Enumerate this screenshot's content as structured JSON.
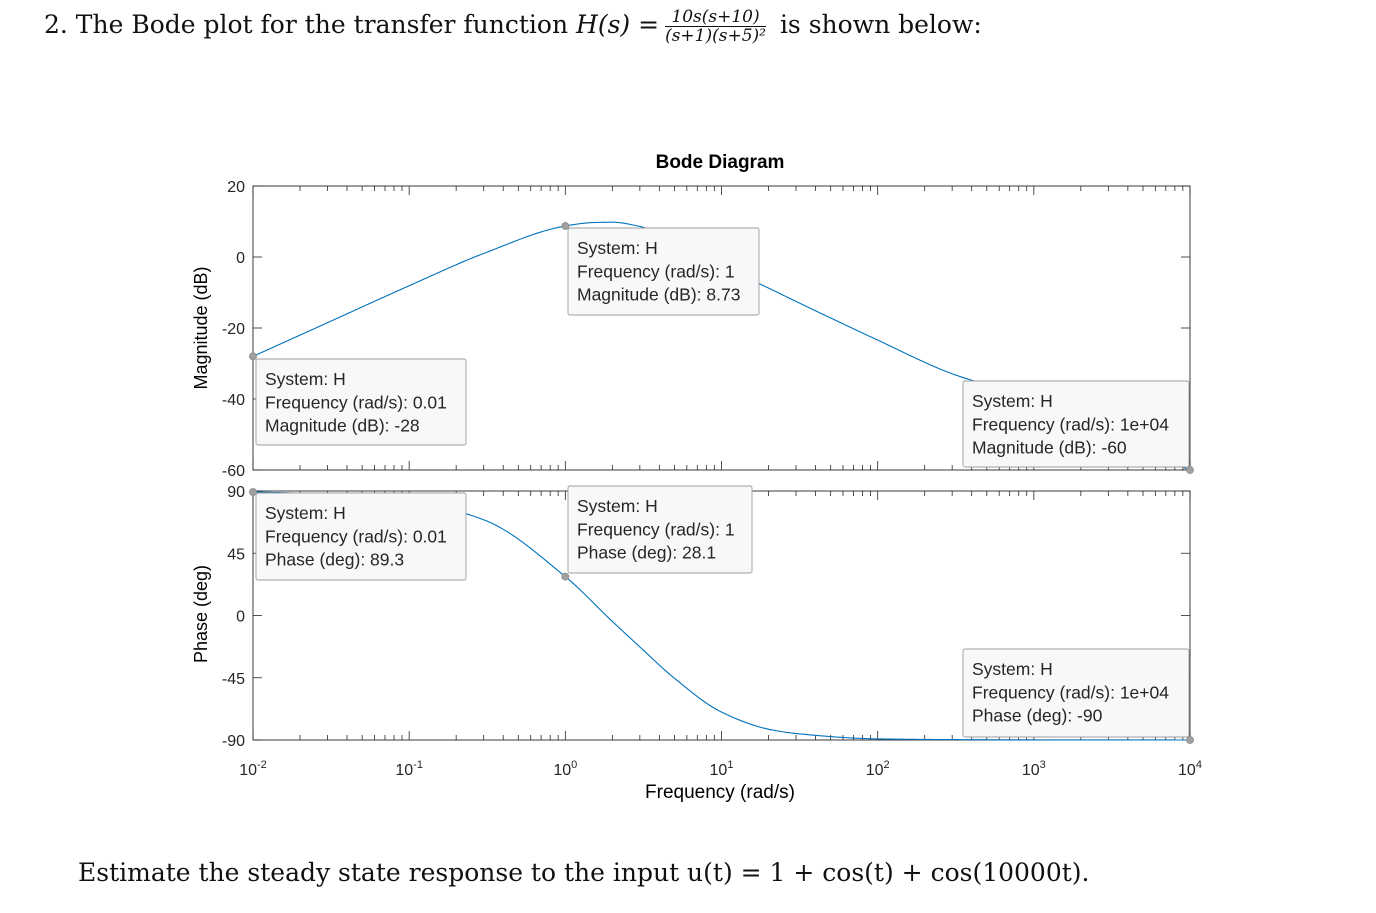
{
  "problem": {
    "prefix": "2. The Bode plot for the transfer function",
    "h_of_s": "H(s) =",
    "numerator": "10s(s+10)",
    "denominator": "(s+1)(s+5)²",
    "suffix": "is shown below:"
  },
  "question": {
    "text": "Estimate the steady state response to the input u(t) = 1 + cos(t) + cos(10000t)."
  },
  "chart_data": {
    "type": "line",
    "title": "Bode Diagram",
    "xlabel": "Frequency  (rad/s)",
    "x_scale": "log",
    "xlim": [
      0.01,
      10000
    ],
    "x_ticks": [
      {
        "base": "10",
        "exp": "-2"
      },
      {
        "base": "10",
        "exp": "-1"
      },
      {
        "base": "10",
        "exp": "0"
      },
      {
        "base": "10",
        "exp": "1"
      },
      {
        "base": "10",
        "exp": "2"
      },
      {
        "base": "10",
        "exp": "3"
      },
      {
        "base": "10",
        "exp": "4"
      }
    ],
    "line_color": "#0072BD",
    "panels": [
      {
        "name": "magnitude",
        "ylabel": "Magnitude (dB)",
        "ylim": [
          -60,
          20
        ],
        "yticks": [
          "20",
          "0",
          "-20",
          "-40",
          "-60"
        ],
        "x": [
          0.01,
          0.03,
          0.1,
          0.3,
          1,
          1.5,
          2,
          3,
          5,
          10,
          30,
          100,
          300,
          1000,
          3000,
          10000
        ],
        "y": [
          -28,
          -18.5,
          -8.1,
          1.0,
          8.73,
          9.7,
          9.8,
          8.6,
          4.8,
          -2.2,
          -12.5,
          -23.4,
          -32.9,
          -40.0,
          -51.0,
          -60.0
        ],
        "datatips": [
          {
            "x": 0.01,
            "y": -28,
            "lines": [
              "System: H",
              "Frequency (rad/s): 0.01",
              "Magnitude (dB): -28"
            ]
          },
          {
            "x": 1,
            "y": 8.73,
            "lines": [
              "System: H",
              "Frequency (rad/s): 1",
              "Magnitude (dB): 8.73"
            ]
          },
          {
            "x": 10000,
            "y": -60,
            "lines": [
              "System: H",
              "Frequency (rad/s): 1e+04",
              "Magnitude (dB): -60"
            ]
          }
        ]
      },
      {
        "name": "phase",
        "ylabel": "Phase (deg)",
        "ylim": [
          -90,
          90
        ],
        "yticks": [
          "90",
          "45",
          "0",
          "-45",
          "-90"
        ],
        "x": [
          0.01,
          0.03,
          0.1,
          0.3,
          1,
          2,
          3,
          5,
          10,
          20,
          30,
          100,
          300,
          1000,
          10000
        ],
        "y": [
          89.3,
          87.8,
          83.0,
          69.2,
          28.1,
          -4.3,
          -22.7,
          -45.4,
          -69.8,
          -82.2,
          -85.3,
          -89.2,
          -89.7,
          -89.9,
          -90.0
        ],
        "datatips": [
          {
            "x": 0.01,
            "y": 89.3,
            "lines": [
              "System: H",
              "Frequency (rad/s): 0.01",
              "Phase (deg): 89.3"
            ]
          },
          {
            "x": 1,
            "y": 28.1,
            "lines": [
              "System: H",
              "Frequency (rad/s): 1",
              "Phase (deg): 28.1"
            ]
          },
          {
            "x": 10000,
            "y": -90,
            "lines": [
              "System: H",
              "Frequency (rad/s): 1e+04",
              "Phase (deg): -90"
            ]
          }
        ]
      }
    ]
  }
}
